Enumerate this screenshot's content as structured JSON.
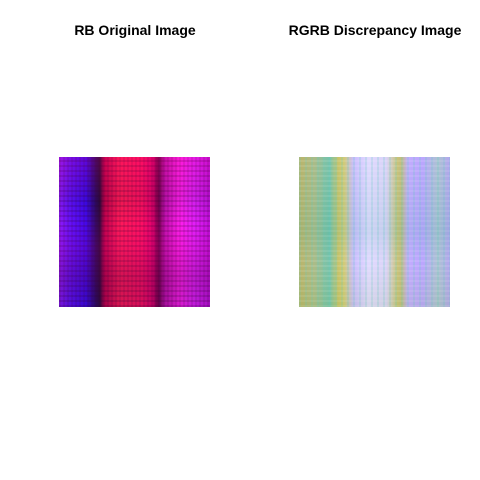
{
  "panels": [
    {
      "title": "RB Original Image"
    },
    {
      "title": "RGRB Discrepancy Image"
    }
  ]
}
